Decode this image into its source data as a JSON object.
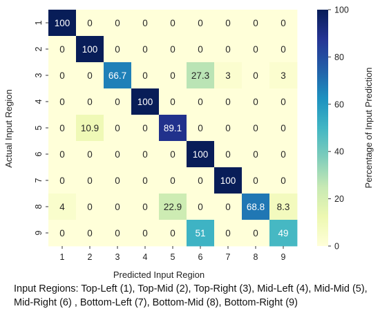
{
  "chart_data": {
    "type": "heatmap",
    "xlabel": "Predicted Input Region",
    "ylabel": "Actual Input Region",
    "colorbar_label": "Percentage of Input Prediction",
    "x_categories": [
      "1",
      "2",
      "3",
      "4",
      "5",
      "6",
      "7",
      "8",
      "9"
    ],
    "y_categories": [
      "1",
      "2",
      "3",
      "4",
      "5",
      "6",
      "7",
      "8",
      "9"
    ],
    "values": [
      [
        100,
        0,
        0,
        0,
        0,
        0,
        0,
        0,
        0
      ],
      [
        0,
        100,
        0,
        0,
        0,
        0,
        0,
        0,
        0
      ],
      [
        0,
        0,
        66.7,
        0,
        0,
        27.3,
        3,
        0,
        3
      ],
      [
        0,
        0,
        0,
        100,
        0,
        0,
        0,
        0,
        0
      ],
      [
        0,
        10.9,
        0,
        0,
        89.1,
        0,
        0,
        0,
        0
      ],
      [
        0,
        0,
        0,
        0,
        0,
        100,
        0,
        0,
        0
      ],
      [
        0,
        0,
        0,
        0,
        0,
        0,
        100,
        0,
        0
      ],
      [
        4,
        0,
        0,
        0,
        22.9,
        0,
        0,
        68.8,
        8.3
      ],
      [
        0,
        0,
        0,
        0,
        0,
        51,
        0,
        0,
        49
      ]
    ],
    "colorbar_ticks": [
      "0",
      "20",
      "40",
      "60",
      "80",
      "100"
    ],
    "colorbar_range": [
      0,
      100
    ],
    "colormap": "YlGnBu",
    "colors": [
      "#ffffd9",
      "#edf8b1",
      "#c7e9b4",
      "#7fcdbb",
      "#41b6c4",
      "#1d91c0",
      "#225ea8",
      "#253494",
      "#081d58"
    ]
  },
  "caption": {
    "line1": "Input Regions: Top-Left (1), Top-Mid (2), Top-Right (3), Mid-Left (4), Mid-Mid (5),",
    "line2": "Mid-Right (6) , Bottom-Left (7), Bottom-Mid (8), Bottom-Right (9)"
  }
}
